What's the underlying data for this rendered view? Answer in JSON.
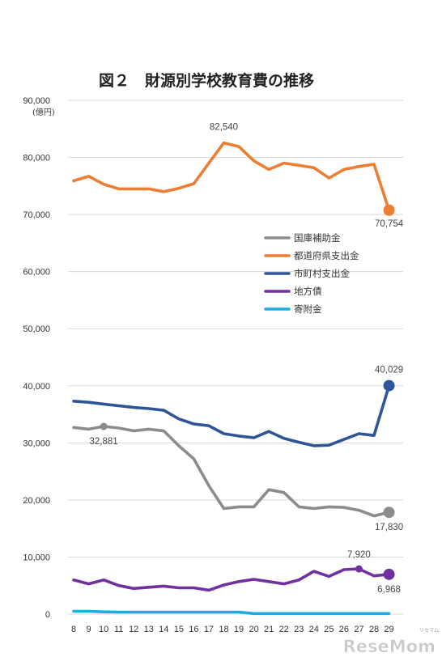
{
  "chart_data": {
    "type": "line",
    "title": "図２　財源別学校教育費の推移",
    "yunit": "(億円)",
    "ylim": [
      0,
      90000
    ],
    "yticks": [
      "0",
      "10,000",
      "20,000",
      "30,000",
      "40,000",
      "50,000",
      "60,000",
      "70,000",
      "80,000",
      "90,000"
    ],
    "x": [
      "8",
      "9",
      "10",
      "11",
      "12",
      "13",
      "14",
      "15",
      "16",
      "17",
      "18",
      "19",
      "20",
      "21",
      "22",
      "23",
      "24",
      "25",
      "26",
      "27",
      "28",
      "29"
    ],
    "grid": true,
    "legend_position": "center-right",
    "series": [
      {
        "name": "国庫補助金",
        "color": "#8c8c8c",
        "values": [
          32700,
          32400,
          32881,
          32600,
          32100,
          32400,
          32100,
          29500,
          27200,
          22500,
          18500,
          18800,
          18800,
          21800,
          21300,
          18800,
          18500,
          18800,
          18700,
          18200,
          17200,
          17830
        ]
      },
      {
        "name": "都道府県支出金",
        "color": "#ed7d31",
        "values": [
          75900,
          76700,
          75300,
          74500,
          74500,
          74500,
          74000,
          74600,
          75400,
          79000,
          82540,
          81900,
          79400,
          77900,
          79000,
          78600,
          78200,
          76400,
          77900,
          78400,
          78800,
          70754
        ]
      },
      {
        "name": "市町村支出金",
        "color": "#2e5597",
        "values": [
          37300,
          37100,
          36800,
          36500,
          36200,
          36000,
          35700,
          34200,
          33300,
          33000,
          31600,
          31200,
          30900,
          32000,
          30800,
          30100,
          29500,
          29600,
          30600,
          31600,
          31300,
          40029
        ]
      },
      {
        "name": "地方債",
        "color": "#7030a0",
        "values": [
          6000,
          5300,
          6000,
          5000,
          4500,
          4700,
          4900,
          4600,
          4600,
          4200,
          5100,
          5700,
          6100,
          5700,
          5300,
          6000,
          7500,
          6600,
          7800,
          7920,
          6700,
          6968
        ]
      },
      {
        "name": "寄附金",
        "color": "#1cade4",
        "values": [
          500,
          500,
          400,
          350,
          350,
          350,
          350,
          350,
          350,
          350,
          350,
          350,
          100,
          100,
          100,
          100,
          100,
          100,
          100,
          100,
          100,
          100
        ]
      }
    ],
    "annotations": [
      {
        "text": "82,540",
        "series": 1,
        "x": "18"
      },
      {
        "text": "70,754",
        "series": 1,
        "x": "29"
      },
      {
        "text": "40,029",
        "series": 2,
        "x": "29"
      },
      {
        "text": "32,881",
        "series": 0,
        "x": "10"
      },
      {
        "text": "17,830",
        "series": 0,
        "x": "29"
      },
      {
        "text": "7,920",
        "series": 3,
        "x": "27"
      },
      {
        "text": "6,968",
        "series": 3,
        "x": "29"
      }
    ]
  },
  "watermark": {
    "text": "ReseMom",
    "small": "リセマム"
  }
}
